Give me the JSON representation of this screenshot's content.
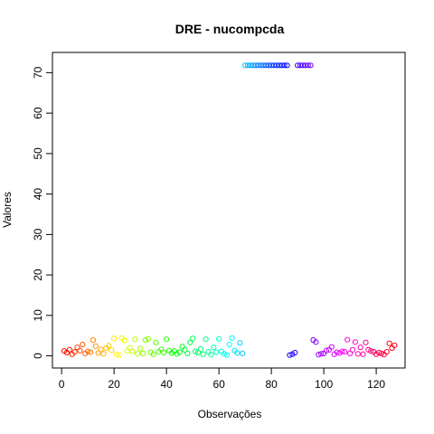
{
  "chart_data": {
    "type": "scatter",
    "title": "DRE - nucompcda",
    "xlabel": "Observações",
    "ylabel": "Valores",
    "xlim": [
      -3.5,
      131
    ],
    "ylim": [
      -3,
      75
    ],
    "xticks": [
      0,
      20,
      40,
      60,
      80,
      100,
      120
    ],
    "yticks": [
      0,
      10,
      20,
      30,
      40,
      50,
      60,
      70
    ],
    "grid": false,
    "legend": "none",
    "marker": "open-circle",
    "color_scheme": "rainbow-by-index",
    "n": 127,
    "y": [
      1.2,
      0.8,
      1.5,
      0.4,
      1.0,
      2.1,
      1.3,
      2.8,
      0.6,
      1.1,
      0.9,
      3.9,
      2.4,
      0.7,
      1.6,
      0.5,
      1.9,
      2.5,
      1.4,
      4.3,
      0.3,
      0.2,
      4.4,
      3.8,
      1.2,
      2.0,
      1.1,
      4.1,
      0.5,
      1.8,
      0.6,
      3.9,
      4.2,
      0.9,
      0.4,
      3.3,
      1.0,
      1.6,
      0.8,
      4.1,
      1.3,
      0.7,
      1.2,
      0.5,
      0.9,
      2.3,
      1.5,
      0.6,
      3.3,
      4.3,
      1.1,
      0.8,
      1.7,
      0.4,
      4.1,
      1.0,
      0.3,
      2.1,
      0.9,
      4.2,
      1.1,
      0.5,
      0.2,
      2.8,
      4.4,
      1.3,
      0.7,
      3.2,
      0.6,
      71.8,
      71.8,
      71.8,
      71.8,
      71.8,
      71.8,
      71.8,
      71.8,
      71.8,
      71.8,
      71.8,
      71.8,
      71.8,
      71.8,
      71.8,
      71.8,
      71.8,
      0.2,
      0.4,
      0.8,
      71.8,
      71.8,
      71.8,
      71.8,
      71.8,
      71.8,
      3.9,
      3.4,
      0.3,
      0.5,
      0.6,
      1.3,
      1.5,
      2.2,
      0.4,
      0.9,
      0.7,
      1.1,
      1.0,
      4.0,
      0.6,
      1.5,
      3.4,
      0.5,
      2.1,
      0.4,
      3.3,
      1.5,
      1.2,
      1.0,
      0.4,
      0.8,
      0.6,
      0.3,
      1.0,
      3.1,
      1.9,
      2.6
    ]
  }
}
